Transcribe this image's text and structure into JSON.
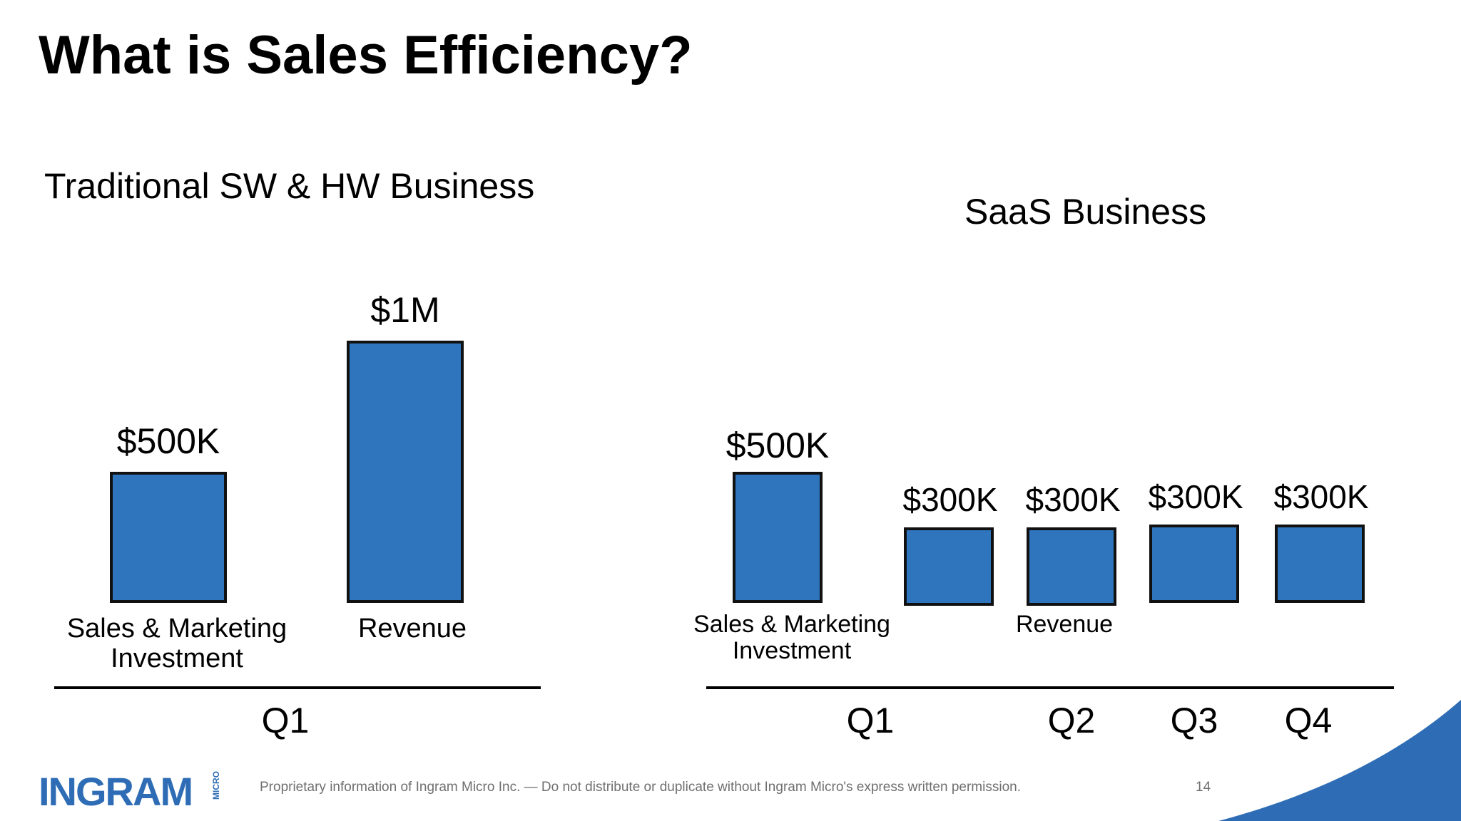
{
  "slide": {
    "title": "What is Sales Efficiency?",
    "footer": "Proprietary information of Ingram Micro Inc. — Do not distribute or duplicate without Ingram Micro's express written permission.",
    "page_number": "14",
    "logo_text": "INGRAM",
    "logo_sub": "MICRO",
    "brand_color": "#2e6db5",
    "bar_color": "#2e75bd"
  },
  "chart_data": [
    {
      "type": "bar",
      "title": "Traditional SW & HW Business",
      "categories": [
        "Sales & Marketing Investment",
        "Revenue"
      ],
      "category_labels": [
        [
          "Sales & Marketing",
          "Investment"
        ],
        [
          "Revenue"
        ]
      ],
      "values": [
        500,
        1000
      ],
      "value_labels": [
        "$500K",
        "$1M"
      ],
      "unit": "$K",
      "quarters": [
        "Q1"
      ],
      "ylim": [
        0,
        1000
      ]
    },
    {
      "type": "bar",
      "title": "SaaS Business",
      "categories": [
        "Sales & Marketing Investment",
        "Revenue Q1",
        "Revenue Q2",
        "Revenue Q3",
        "Revenue Q4"
      ],
      "category_labels": [
        [
          "Sales & Marketing",
          "Investment"
        ],
        [
          "Revenue"
        ]
      ],
      "values": [
        500,
        300,
        300,
        300,
        300
      ],
      "value_labels": [
        "$500K",
        "$300K",
        "$300K",
        "$300K",
        "$300K"
      ],
      "unit": "$K",
      "quarters": [
        "Q1",
        "Q2",
        "Q3",
        "Q4"
      ],
      "ylim": [
        0,
        1000
      ]
    }
  ]
}
